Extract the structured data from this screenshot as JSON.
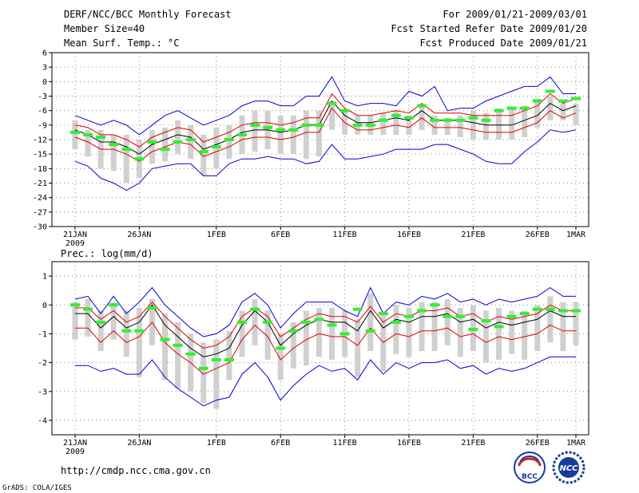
{
  "header": {
    "title": "DERF/NCC/BCC Monthly Forecast",
    "member_size": "Member Size=40",
    "variable": "Mean Surf. Temp.: °C",
    "period": "For 2009/01/21-2009/03/01",
    "started": "Fcst Started Refer Date 2009/01/20",
    "produced": "Fcst Produced Date 2009/01/21"
  },
  "precip_title": "Prec.: log(mm/d)",
  "footer": {
    "url": "http://cmdp.ncc.cma.gov.cn",
    "grads": "GrADS: COLA/IGES",
    "logo1": "BCC",
    "logo2": "NCC"
  },
  "colors": {
    "median": "#000000",
    "inner": "#e00000",
    "outer": "#0000dd",
    "box": "#d0d0d0",
    "obs": "#33ee33"
  },
  "chart_data": [
    {
      "type": "line",
      "name": "temperature",
      "ylabel": "Mean Surf. Temp.: °C",
      "ylim": [
        -30,
        6
      ],
      "yticks": [
        6,
        3,
        0,
        -3,
        -6,
        -9,
        -12,
        -15,
        -18,
        -21,
        -24,
        -27,
        -30
      ],
      "xlim": [
        0,
        39
      ],
      "x_ticks": [
        {
          "x": 0,
          "label": "21JAN",
          "sub": "2009"
        },
        {
          "x": 5,
          "label": "26JAN"
        },
        {
          "x": 11,
          "label": "1FEB"
        },
        {
          "x": 16,
          "label": "6FEB"
        },
        {
          "x": 21,
          "label": "11FEB"
        },
        {
          "x": 26,
          "label": "16FEB"
        },
        {
          "x": 31,
          "label": "21FEB"
        },
        {
          "x": 36,
          "label": "26FEB"
        },
        {
          "x": 39,
          "label": "1MAR"
        }
      ],
      "series": [
        {
          "name": "median",
          "values": [
            -10,
            -11,
            -12.5,
            -12.5,
            -13.5,
            -15,
            -13,
            -12,
            -11,
            -11.5,
            -14,
            -13,
            -12,
            -10.5,
            -10,
            -10,
            -10.5,
            -10,
            -9,
            -9,
            -4,
            -7,
            -8.5,
            -8.5,
            -8,
            -7.5,
            -8,
            -6,
            -8,
            -8,
            -8,
            -8.5,
            -9,
            -9,
            -9,
            -8,
            -7,
            -4.5,
            -6,
            -5
          ]
        },
        {
          "name": "inner_upper",
          "values": [
            -9,
            -9.5,
            -11,
            -11,
            -12,
            -13.5,
            -11.5,
            -10.5,
            -9.5,
            -10,
            -12.5,
            -11.5,
            -10.5,
            -9,
            -8.5,
            -8.5,
            -9,
            -8.5,
            -7.5,
            -7.5,
            -2.5,
            -5.5,
            -7,
            -7,
            -6.5,
            -6,
            -6.5,
            -4.5,
            -6.5,
            -6.5,
            -6.5,
            -7,
            -7,
            -7,
            -7,
            -6,
            -5,
            -2.5,
            -4.5,
            -3.5
          ]
        },
        {
          "name": "inner_lower",
          "values": [
            -11.5,
            -12.5,
            -14,
            -14,
            -15,
            -16.5,
            -14.5,
            -13.5,
            -12.5,
            -13,
            -15.5,
            -14.5,
            -13.5,
            -12,
            -11.5,
            -11.5,
            -12,
            -11.5,
            -10.5,
            -10.5,
            -5.5,
            -8.5,
            -10,
            -10,
            -9.5,
            -9,
            -9.5,
            -7.5,
            -9.5,
            -9.5,
            -9.5,
            -10,
            -10.5,
            -10.5,
            -10.5,
            -9.5,
            -8.5,
            -6,
            -7.5,
            -6.5
          ]
        },
        {
          "name": "outer_upper",
          "values": [
            -7,
            -8,
            -9,
            -8,
            -9,
            -11,
            -9,
            -7,
            -6,
            -7.5,
            -9,
            -8,
            -7,
            -5,
            -4,
            -4,
            -5,
            -5,
            -3,
            -3,
            1,
            -4,
            -5,
            -4.5,
            -4.5,
            -5,
            -2,
            -3,
            -1,
            -6,
            -5.5,
            -5.5,
            -4,
            -3,
            -2,
            -1,
            -1,
            1,
            -2.5,
            -2.5
          ]
        },
        {
          "name": "outer_lower",
          "values": [
            -16.5,
            -17.5,
            -20,
            -21,
            -22.5,
            -21,
            -18,
            -17.5,
            -17,
            -17,
            -19.5,
            -19.5,
            -17,
            -16,
            -16,
            -15.5,
            -16,
            -16,
            -17,
            -16.5,
            -13,
            -16,
            -16,
            -15.5,
            -15,
            -14,
            -14,
            -14,
            -13,
            -13,
            -14,
            -15,
            -16.5,
            -17,
            -17,
            -14.5,
            -12.5,
            -10,
            -10.5,
            -10
          ]
        }
      ],
      "boxes": {
        "top": [
          -8,
          -10,
          -10,
          -11,
          -11,
          -12,
          -10,
          -9.5,
          -8,
          -9,
          -11,
          -9.5,
          -9,
          -7,
          -6,
          -6,
          -7,
          -7,
          -6,
          -6,
          -4,
          -6,
          -7,
          -7,
          -6.5,
          -6,
          -7,
          -5,
          -7,
          -7.5,
          -7,
          -6,
          -6.5,
          -5.5,
          -5.5,
          -5,
          -3.5,
          -3,
          -4.5,
          -4.5
        ],
        "bottom": [
          -14,
          -15.5,
          -18,
          -18.5,
          -21,
          -20,
          -17,
          -16.5,
          -15,
          -16,
          -19.5,
          -18,
          -16,
          -15,
          -14.5,
          -14,
          -15,
          -15,
          -16,
          -15.5,
          -10,
          -11,
          -11,
          -11,
          -11,
          -11,
          -11,
          -10,
          -11,
          -11,
          -11.5,
          -12,
          -12,
          -12,
          -12,
          -11.5,
          -9.5,
          -8,
          -8,
          -9
        ]
      },
      "observed": [
        -10.5,
        -11,
        -11.5,
        -13,
        -14,
        -16,
        -12.5,
        -14,
        -12.5,
        -12,
        -14.5,
        -13.5,
        -12,
        -11,
        -9,
        -9.5,
        -10,
        -10,
        -9,
        -9,
        -4.5,
        -6,
        -9,
        -9,
        -8,
        -7,
        -7.5,
        -5,
        -8,
        -8,
        -8,
        -7.5,
        -8,
        -6,
        -5.5,
        -5.5,
        -4,
        -2,
        -4,
        -3.5
      ]
    },
    {
      "type": "line",
      "name": "precipitation",
      "ylabel": "Prec.: log(mm/d)",
      "ylim": [
        -4.5,
        1.5
      ],
      "yticks": [
        1,
        0,
        -1,
        -2,
        -3,
        -4
      ],
      "xlim": [
        0,
        39
      ],
      "x_ticks": [
        {
          "x": 0,
          "label": "21JAN",
          "sub": "2009"
        },
        {
          "x": 5,
          "label": "26JAN"
        },
        {
          "x": 11,
          "label": "1FEB"
        },
        {
          "x": 16,
          "label": "6FEB"
        },
        {
          "x": 21,
          "label": "11FEB"
        },
        {
          "x": 26,
          "label": "16FEB"
        },
        {
          "x": 31,
          "label": "21FEB"
        },
        {
          "x": 36,
          "label": "26FEB"
        },
        {
          "x": 39,
          "label": "1MAR"
        }
      ],
      "series": [
        {
          "name": "median",
          "values": [
            -0.3,
            -0.3,
            -0.8,
            -0.4,
            -0.8,
            -0.6,
            0,
            -0.7,
            -1.1,
            -1.5,
            -1.8,
            -1.7,
            -1.5,
            -0.7,
            -0.2,
            -0.6,
            -1.4,
            -1,
            -0.7,
            -0.5,
            -0.6,
            -0.6,
            -0.9,
            -0.2,
            -0.8,
            -0.5,
            -0.6,
            -0.4,
            -0.4,
            -0.3,
            -0.6,
            -0.5,
            -0.8,
            -0.6,
            -0.7,
            -0.6,
            -0.5,
            -0.2,
            -0.4,
            -0.4
          ]
        },
        {
          "name": "inner_upper",
          "values": [
            -0.1,
            -0.1,
            -0.5,
            -0.2,
            -0.6,
            -0.4,
            0.1,
            -0.4,
            -0.8,
            -1.2,
            -1.5,
            -1.4,
            -1.1,
            -0.4,
            -0.1,
            -0.4,
            -1.1,
            -0.8,
            -0.5,
            -0.3,
            -0.4,
            -0.4,
            -0.6,
            -0.05,
            -0.6,
            -0.3,
            -0.4,
            -0.2,
            -0.2,
            -0.1,
            -0.4,
            -0.3,
            -0.6,
            -0.4,
            -0.5,
            -0.4,
            -0.3,
            0,
            -0.2,
            -0.2
          ]
        },
        {
          "name": "inner_lower",
          "values": [
            -0.8,
            -0.8,
            -1.3,
            -0.9,
            -1.3,
            -1.1,
            -0.6,
            -1.3,
            -1.7,
            -2,
            -2.4,
            -2.2,
            -2,
            -1.2,
            -0.7,
            -1.1,
            -1.9,
            -1.5,
            -1.2,
            -1,
            -1.1,
            -1.1,
            -1.4,
            -0.8,
            -1.3,
            -1,
            -1.1,
            -0.9,
            -0.9,
            -0.8,
            -1.1,
            -1,
            -1.3,
            -1.1,
            -1.2,
            -1.1,
            -1,
            -0.7,
            -0.9,
            -0.9
          ]
        },
        {
          "name": "outer_upper",
          "values": [
            0.2,
            0.3,
            -0.3,
            0.3,
            -0.3,
            0.1,
            0.6,
            0,
            -0.4,
            -0.8,
            -1.1,
            -1,
            -0.7,
            0.1,
            0.4,
            0,
            -0.8,
            -0.3,
            0.1,
            0.1,
            0.1,
            -0.2,
            -0.4,
            0.6,
            -0.3,
            0.1,
            0,
            0.3,
            0.2,
            0.4,
            0.1,
            0.2,
            0,
            0.2,
            0.1,
            0.2,
            0.3,
            0.6,
            0.3,
            0.3
          ]
        },
        {
          "name": "outer_lower",
          "values": [
            -2.1,
            -2.1,
            -2.3,
            -2.2,
            -2.4,
            -2.4,
            -1.9,
            -2.5,
            -2.9,
            -3.2,
            -3.5,
            -3.3,
            -3.2,
            -2.4,
            -2,
            -2.5,
            -3.3,
            -2.8,
            -2.4,
            -2.1,
            -2.3,
            -2.2,
            -2.6,
            -1.9,
            -2.4,
            -2,
            -2.2,
            -2,
            -2,
            -1.9,
            -2.2,
            -2.1,
            -2.4,
            -2.2,
            -2.3,
            -2.2,
            -2,
            -1.8,
            -1.8,
            -1.8
          ]
        }
      ],
      "boxes": {
        "top": [
          0.1,
          0.2,
          -0.2,
          0.1,
          -0.2,
          -0.1,
          0.2,
          -0.3,
          -0.6,
          -1,
          -1.3,
          -1.2,
          -0.9,
          -0.2,
          0.2,
          -0.2,
          -1,
          -0.6,
          -0.2,
          -0.1,
          -0.1,
          -0.2,
          -0.5,
          0.4,
          -0.3,
          0,
          -0.1,
          0.1,
          0.1,
          0.2,
          -0.1,
          0,
          -0.2,
          -0.1,
          -0.2,
          -0.2,
          0,
          0.3,
          0.1,
          0.1
        ],
        "bottom": [
          -1.2,
          -1.1,
          -1.6,
          -1.2,
          -1.8,
          -2.5,
          -1.4,
          -2.6,
          -2.9,
          -3,
          -3.4,
          -3.6,
          -2.6,
          -1.8,
          -1.4,
          -1.9,
          -2.6,
          -2.2,
          -2.1,
          -1.8,
          -1.9,
          -1.8,
          -2.5,
          -1.6,
          -2.3,
          -1.7,
          -1.8,
          -1.6,
          -1.6,
          -1.4,
          -1.8,
          -1.6,
          -2,
          -1.9,
          -1.7,
          -1.9,
          -1.6,
          -1.3,
          -1.6,
          -1.4
        ]
      },
      "observed": [
        0,
        -0.15,
        -0.6,
        0,
        -0.9,
        -0.9,
        -0.1,
        -1.2,
        -1.4,
        -1.7,
        -2.2,
        -1.9,
        -1.9,
        -0.6,
        -0.15,
        -0.6,
        -1.5,
        -0.9,
        -0.6,
        -0.5,
        -0.7,
        -1,
        -0.15,
        -0.9,
        -0.3,
        -0.6,
        -0.4,
        -0.2,
        0,
        -0.4,
        -0.4,
        -0.85,
        -0.55,
        -0.75,
        -0.4,
        -0.3,
        -0.15,
        -0.15,
        -0.2,
        -0.2
      ]
    }
  ]
}
